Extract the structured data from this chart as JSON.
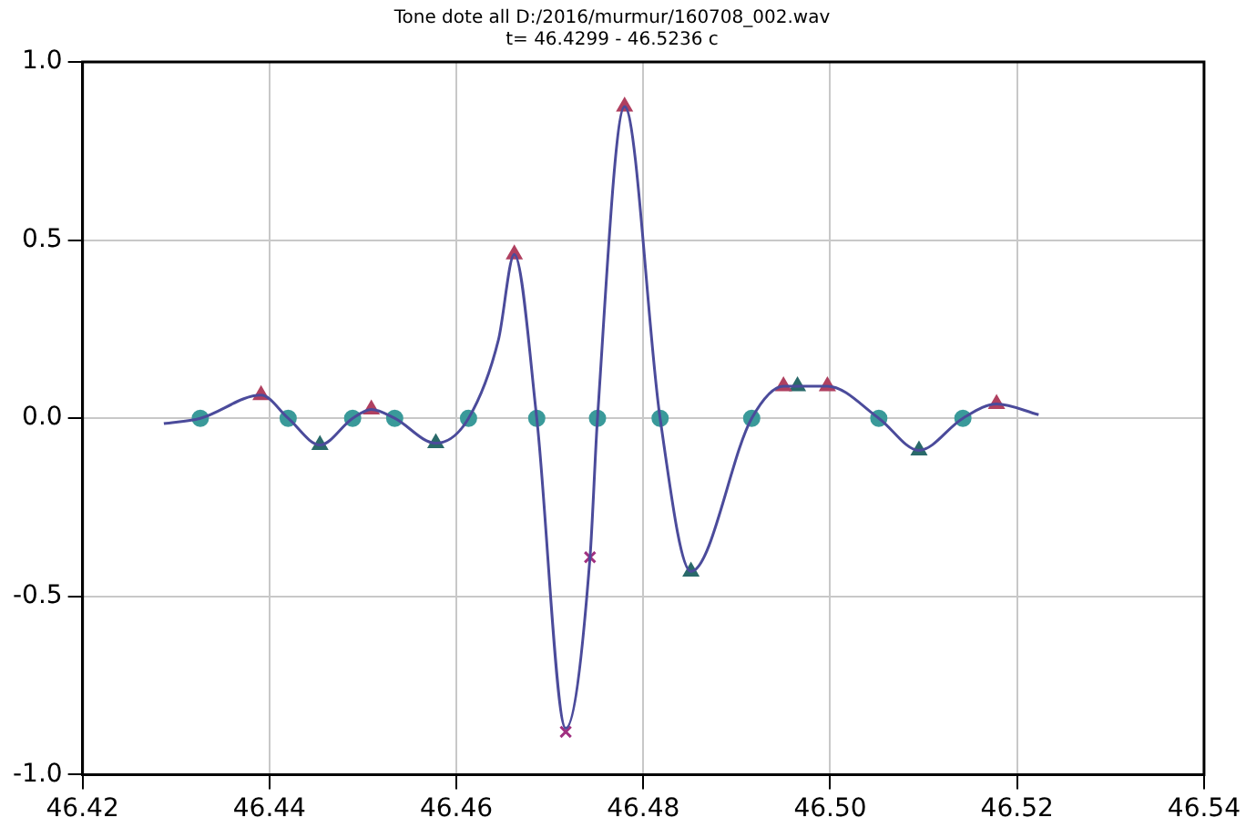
{
  "chart_data": {
    "type": "line",
    "title": "Tone dote all D:/2016/murmur/160708_002.wav",
    "subtitle": "t= 46.4299 - 46.5236 c",
    "xlim": [
      46.42,
      46.54
    ],
    "xticks": [
      46.42,
      46.44,
      46.46,
      46.48,
      {
        "value": 46.5,
        "label": "46.50"
      },
      46.52,
      46.54
    ],
    "ylim": [
      -1.0,
      1.0
    ],
    "yticks": [
      {
        "value": -1.0,
        "label": "-1.0"
      },
      {
        "value": -0.5,
        "label": "-0.5"
      },
      {
        "value": 0,
        "label": "0.0"
      },
      {
        "value": 0.5,
        "label": "0.5"
      },
      {
        "value": 1.0,
        "label": "1.0"
      }
    ],
    "grid": true,
    "legend": false,
    "series": [
      {
        "type": "line",
        "color": "#4b4b9b",
        "marker": "none",
        "x": [
          46.4287,
          46.4326,
          46.4391,
          46.442,
          46.4454,
          46.4489,
          46.4509,
          46.4534,
          46.4578,
          46.4613,
          46.4645,
          46.4662,
          46.4686,
          46.4717,
          46.4743,
          46.4751,
          46.478,
          46.4818,
          46.4851,
          46.4916,
          46.495,
          46.4965,
          46.4997,
          46.5052,
          46.5095,
          46.5142,
          46.5178,
          46.5223
        ],
        "values": [
          -0.015,
          0,
          0.065,
          0,
          -0.075,
          0,
          0.025,
          0,
          -0.07,
          0,
          0.22,
          0.46,
          0,
          -0.87,
          -0.39,
          0,
          0.875,
          0,
          -0.43,
          0,
          0.09,
          0.09,
          0.09,
          0,
          -0.09,
          0,
          0.04,
          0.01
        ]
      },
      {
        "type": "scatter",
        "color": "#3a9a9a",
        "marker": "circle",
        "x": [
          46.4326,
          46.442,
          46.4489,
          46.4534,
          46.4613,
          46.4686,
          46.4751,
          46.4818,
          46.4916,
          46.5052,
          46.5142
        ],
        "values": [
          0,
          0,
          0,
          0,
          0,
          0,
          0,
          0,
          0,
          0,
          0
        ]
      },
      {
        "type": "scatter",
        "color": "#b04060",
        "marker": "triangle",
        "x": [
          46.4391,
          46.4509,
          46.4662,
          46.478,
          46.495,
          46.4997,
          46.5178
        ],
        "values": [
          0.065,
          0.025,
          0.46,
          0.875,
          0.09,
          0.09,
          0.04
        ]
      },
      {
        "type": "scatter",
        "color": "#2a6a6a",
        "marker": "triangle",
        "x": [
          46.4454,
          46.4578,
          46.4851,
          46.4965,
          46.5095
        ],
        "values": [
          -0.075,
          -0.07,
          -0.43,
          0.09,
          -0.09
        ]
      },
      {
        "type": "scatter",
        "color": "#a03080",
        "marker": "cross",
        "x": [
          46.4717,
          46.4743
        ],
        "values": [
          -0.88,
          -0.39
        ]
      }
    ]
  }
}
